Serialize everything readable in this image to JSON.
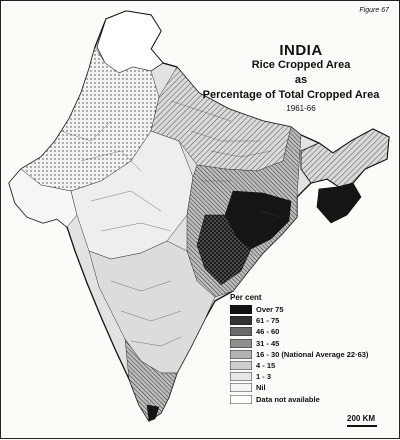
{
  "figure_label": "Figure 67",
  "title": {
    "country": "INDIA",
    "line1": "Rice Cropped Area",
    "line2": "as",
    "line3": "Percentage of Total Cropped Area",
    "period": "1961-66"
  },
  "legend": {
    "heading": "Per cent",
    "items": [
      {
        "label": "Over   75",
        "fill": "#111111",
        "pattern": "solid"
      },
      {
        "label": "61  -  75",
        "fill": "#333333",
        "pattern": "cross"
      },
      {
        "label": "46  -  60",
        "fill": "#6a6a6a",
        "pattern": "dense"
      },
      {
        "label": "31  -  45",
        "fill": "#8f8f8f",
        "pattern": "diag"
      },
      {
        "label": "16  -  30  (National Average 22·63)",
        "fill": "#b3b3b3",
        "pattern": "hatch"
      },
      {
        "label": "4  -  15",
        "fill": "#cfcfcf",
        "pattern": "dots"
      },
      {
        "label": "1  -  3",
        "fill": "#e6e6e6",
        "pattern": "light"
      },
      {
        "label": "Nil",
        "fill": "#f4f4f4",
        "pattern": "sparse"
      },
      {
        "label": "Data not available",
        "fill": "#ffffff",
        "pattern": "none"
      }
    ]
  },
  "scale": {
    "label": "200 KM"
  }
}
